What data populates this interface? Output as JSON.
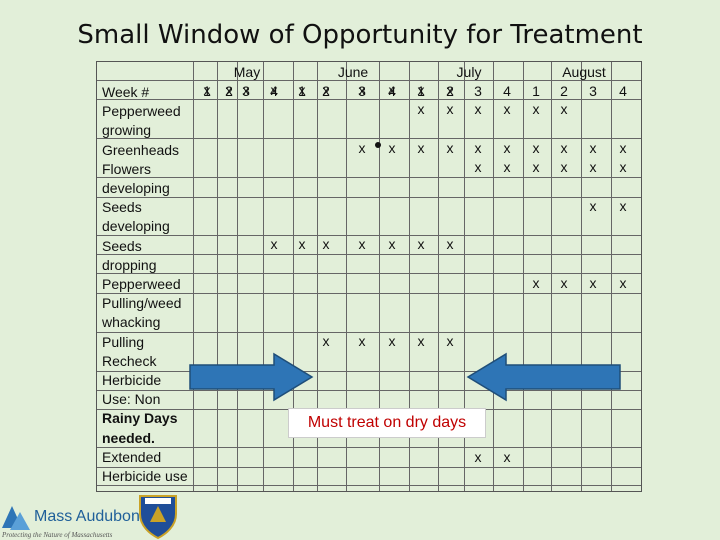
{
  "title": "Small Window of Opportunity for Treatment",
  "months": [
    "May",
    "June",
    "July",
    "August"
  ],
  "weeks": [
    "1",
    "2",
    "3",
    "4",
    "1",
    "2",
    "3",
    "4",
    "1",
    "2",
    "3",
    "4",
    "1",
    "2",
    "3",
    "4"
  ],
  "row_labels": [
    {
      "text": "Week #",
      "bold": false
    },
    {
      "text": "Pepperweed",
      "bold": false
    },
    {
      "text": "growing",
      "bold": false
    },
    {
      "text": "Greenheads",
      "bold": false
    },
    {
      "text": "Flowers",
      "bold": false
    },
    {
      "text": "developing",
      "bold": false
    },
    {
      "text": "Seeds",
      "bold": false
    },
    {
      "text": "developing",
      "bold": false
    },
    {
      "text": "Seeds",
      "bold": false
    },
    {
      "text": "dropping",
      "bold": false
    },
    {
      "text": "Pepperweed",
      "bold": false
    },
    {
      "text": "Pulling/weed",
      "bold": false
    },
    {
      "text": "whacking",
      "bold": false
    },
    {
      "text": "Pulling",
      "bold": false
    },
    {
      "text": "Recheck",
      "bold": false
    },
    {
      "text": "Herbicide",
      "bold": false
    },
    {
      "text": "Use:  Non",
      "bold": false
    },
    {
      "text": "Rainy Days",
      "bold": true
    },
    {
      "text": "needed.",
      "bold": true
    },
    {
      "text": "Extended",
      "bold": false
    },
    {
      "text": "Herbicide use",
      "bold": false
    }
  ],
  "marks": [
    {
      "row": 0,
      "weeks": [
        1,
        2,
        3,
        4,
        5,
        6,
        7,
        8,
        9,
        10
      ],
      "symbol": "x"
    },
    {
      "row": 1,
      "weeks": [
        9,
        10,
        11,
        12,
        13,
        14
      ],
      "symbol": "x"
    },
    {
      "row": 2,
      "weeks": [
        7,
        8,
        9,
        10,
        11,
        12,
        13,
        14,
        15,
        16
      ],
      "symbol": "x"
    },
    {
      "row": 3,
      "weeks": [
        11,
        12,
        13,
        14,
        15,
        16
      ],
      "symbol": "x"
    },
    {
      "row": 4,
      "weeks": [
        15,
        16
      ],
      "symbol": "x"
    },
    {
      "row": 5,
      "weeks": [
        4,
        5,
        6,
        7,
        8,
        9,
        10
      ],
      "symbol": "x"
    },
    {
      "row": 6,
      "weeks": [
        13,
        14,
        15,
        16
      ],
      "symbol": "x"
    },
    {
      "row": 7,
      "weeks": [
        6,
        7,
        8,
        9,
        10
      ],
      "symbol": "x"
    },
    {
      "row": 9,
      "weeks": [
        11,
        12
      ],
      "symbol": "x"
    }
  ],
  "bullet": {
    "row": 1,
    "week": 7
  },
  "callout": "Must treat on dry days",
  "logo": {
    "name": "Mass Audubon",
    "tagline": "Protecting the Nature of Massachusetts"
  },
  "colors": {
    "background": "#e2efd9",
    "arrow": "#2e75b6",
    "callout_text": "#c00000"
  }
}
